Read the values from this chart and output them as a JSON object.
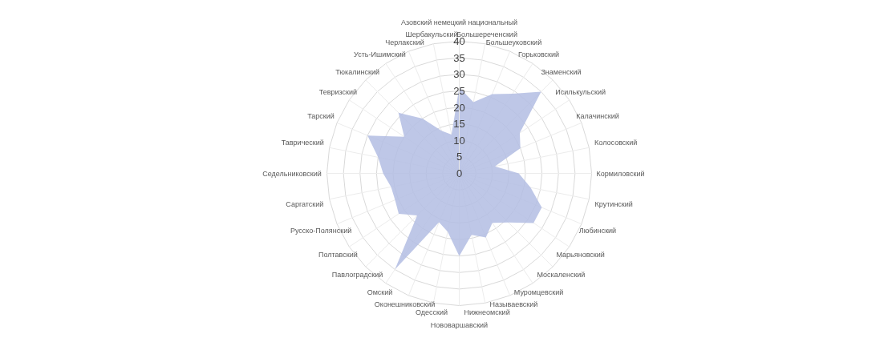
{
  "chart_data": {
    "type": "radar",
    "categories": [
      "Азовский немецкий национальный",
      "Большереченский",
      "Большеуковский",
      "Горьковский",
      "Знаменский",
      "Исилькульский",
      "Калачинский",
      "Колосовский",
      "Кормиловский",
      "Крутинский",
      "Любинский",
      "Марьяновский",
      "Москаленский",
      "Муромцевский",
      "Называевский",
      "Нижнеомский",
      "Нововаршавский",
      "Одесский",
      "Оконешниковский",
      "Омский",
      "Павлоградский",
      "Полтавский",
      "Русско-Полянский",
      "Саргатский",
      "Седельниковский",
      "Таврический",
      "Тарский",
      "Тевризский",
      "Тюкалинский",
      "Усть-Ишимский",
      "Черлакский",
      "Шербакульский"
    ],
    "series": [
      {
        "color": "#b3bde3",
        "values": [
          26,
          22,
          26,
          29,
          35,
          22,
          20,
          11,
          18,
          22,
          27,
          27,
          21,
          18,
          21,
          19,
          25,
          18,
          16,
          35,
          18,
          22,
          21,
          21,
          23,
          25,
          30,
          20,
          26,
          20,
          14,
          12
        ]
      }
    ],
    "ylim": [
      0,
      40
    ],
    "yticks": [
      0,
      5,
      10,
      15,
      20,
      25,
      30,
      35,
      40
    ],
    "grid": true
  }
}
